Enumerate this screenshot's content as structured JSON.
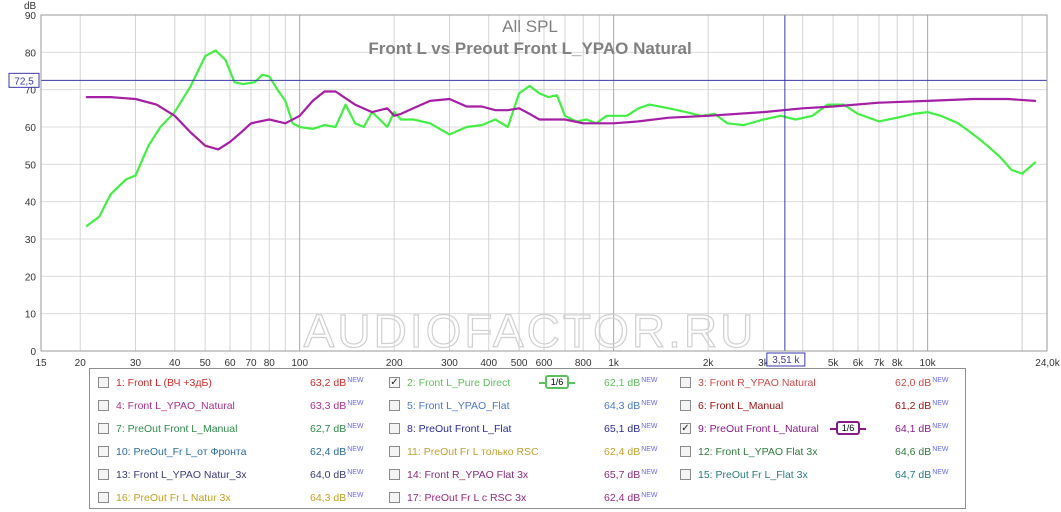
{
  "chart_data": {
    "type": "line",
    "title": "All SPL",
    "subtitle": "Front L vs Preout Front L_YPAO Natural",
    "ylabel": "dB",
    "xlabel": "Hz",
    "ylim": [
      0,
      90
    ],
    "xlim": [
      15,
      24000
    ],
    "x_scale": "log",
    "grid": true,
    "watermark": "AUDIOFACTOR.RU",
    "y_ticks": [
      "0",
      "10",
      "20",
      "30",
      "40",
      "50",
      "60",
      "70",
      "80",
      "90"
    ],
    "x_ticks": [
      {
        "v": 15,
        "label": "15"
      },
      {
        "v": 20,
        "label": "20"
      },
      {
        "v": 30,
        "label": "30"
      },
      {
        "v": 40,
        "label": "40"
      },
      {
        "v": 50,
        "label": "50"
      },
      {
        "v": 60,
        "label": "60"
      },
      {
        "v": 70,
        "label": "70"
      },
      {
        "v": 80,
        "label": "80"
      },
      {
        "v": 100,
        "label": "100"
      },
      {
        "v": 200,
        "label": "200"
      },
      {
        "v": 300,
        "label": "300"
      },
      {
        "v": 400,
        "label": "400"
      },
      {
        "v": 500,
        "label": "500"
      },
      {
        "v": 600,
        "label": "600"
      },
      {
        "v": 800,
        "label": "800"
      },
      {
        "v": 1000,
        "label": "1k"
      },
      {
        "v": 2000,
        "label": "2k"
      },
      {
        "v": 3000,
        "label": "3k"
      },
      {
        "v": 5000,
        "label": "5k"
      },
      {
        "v": 6000,
        "label": "6k"
      },
      {
        "v": 7000,
        "label": "7k"
      },
      {
        "v": 8000,
        "label": "8k"
      },
      {
        "v": 10000,
        "label": "10k"
      },
      {
        "v": 24000,
        "label": "24,0k Hz"
      }
    ],
    "cursor": {
      "y": 72.5,
      "y_label": "72,5",
      "x": 3510,
      "x_label": "3,51 k"
    },
    "series": [
      {
        "color": "#44ee44",
        "x": [
          21,
          23,
          25,
          28,
          30,
          33,
          36,
          40,
          45,
          50,
          54,
          58,
          62,
          66,
          72,
          76,
          80,
          85,
          90,
          95,
          100,
          110,
          120,
          130,
          140,
          150,
          160,
          170,
          180,
          190,
          200,
          210,
          230,
          260,
          300,
          340,
          380,
          420,
          460,
          500,
          540,
          580,
          620,
          660,
          700,
          760,
          820,
          880,
          950,
          1000,
          1100,
          1200,
          1300,
          1500,
          1700,
          1900,
          2100,
          2300,
          2600,
          3000,
          3400,
          3800,
          4300,
          4800,
          5400,
          6000,
          7000,
          8000,
          9000,
          10000,
          11000,
          12500,
          14000,
          15500,
          17000,
          18500,
          20000,
          22000
        ],
        "y": [
          33.5,
          36,
          42,
          46,
          47,
          55,
          60,
          64,
          71,
          79,
          80.5,
          78,
          72,
          71.5,
          72,
          74,
          73.5,
          70,
          67,
          61,
          60,
          59.5,
          60.5,
          60,
          66,
          61,
          60,
          64,
          62,
          60,
          64,
          62,
          62,
          61,
          58,
          60,
          60.5,
          62,
          60,
          69,
          71,
          69,
          68,
          68.5,
          63,
          61.5,
          62,
          61,
          63,
          63,
          63,
          65,
          66,
          65,
          64,
          63,
          63.5,
          61,
          60.5,
          62,
          63,
          62,
          63,
          66,
          66,
          63.5,
          61.5,
          62.5,
          63.5,
          64,
          63,
          61,
          58,
          55,
          52,
          48.5,
          47.5,
          50.5
        ]
      },
      {
        "color": "#a51ea5",
        "x": [
          21,
          25,
          30,
          35,
          40,
          45,
          50,
          55,
          60,
          65,
          70,
          80,
          90,
          100,
          110,
          120,
          130,
          150,
          170,
          190,
          200,
          210,
          230,
          260,
          300,
          340,
          380,
          420,
          460,
          500,
          540,
          580,
          620,
          700,
          800,
          900,
          1000,
          1200,
          1500,
          2000,
          3000,
          4000,
          5000,
          7000,
          10000,
          14000,
          18000,
          22000
        ],
        "y": [
          68,
          68,
          67.5,
          66,
          63,
          58.5,
          55,
          54,
          56,
          58.5,
          61,
          62,
          61,
          63,
          67,
          69.5,
          69.5,
          66,
          64,
          65,
          63,
          63.5,
          65,
          67,
          67.5,
          65.5,
          65.5,
          64.5,
          64.5,
          65,
          63.5,
          62,
          62,
          62,
          61,
          61,
          61,
          61.5,
          62.5,
          63,
          64,
          65,
          65.5,
          66.5,
          67,
          67.5,
          67.5,
          67
        ]
      }
    ]
  },
  "legend": [
    {
      "label": "1: Front L (ВЧ +3дБ)",
      "value": "63,2 dB",
      "sup": "NEW",
      "color": "#d32b2b",
      "checked": false
    },
    {
      "label": "2: Front L_Pure Direct",
      "value": "62,1 dB",
      "sup": "NEW",
      "color": "#5cc05c",
      "checked": true,
      "badge": "1/6"
    },
    {
      "label": "3: Front R_YPAO Natural",
      "value": "62,0 dB",
      "sup": "NEW",
      "color": "#d04a4a",
      "checked": false
    },
    {
      "label": "4: Front L_YPAO_Natural",
      "value": "63,3 dB",
      "sup": "NEW",
      "color": "#b0308a",
      "checked": false
    },
    {
      "label": "5: Front L_YPAO_Flat",
      "value": "64,3 dB",
      "sup": "NEW",
      "color": "#4a78c8",
      "checked": false
    },
    {
      "label": "6: Front L_Manual",
      "value": "61,2 dB",
      "sup": "NEW",
      "color": "#9a1010",
      "checked": false
    },
    {
      "label": "7: PreOut Front L_Manual",
      "value": "62,7 dB",
      "sup": "NEW",
      "color": "#2e8a4a",
      "checked": false
    },
    {
      "label": "8: PreOut Front L_Flat",
      "value": "65,1 dB",
      "sup": "NEW",
      "color": "#2a2a9a",
      "checked": false
    },
    {
      "label": "9: PreOut Front L_Natural",
      "value": "64,1 dB",
      "sup": "NEW",
      "color": "#8a1a8a",
      "checked": true,
      "badge": "1/6"
    },
    {
      "label": "10: PreOut_Fr L_от Фронта",
      "value": "62,4 dB",
      "sup": "NEW",
      "color": "#2a6a9a",
      "checked": false
    },
    {
      "label": "11: PreOut Fr L только RSC",
      "value": "62,4 dB",
      "sup": "NEW",
      "color": "#c0a030",
      "checked": false
    },
    {
      "label": "12: Front L_YPAO Flat 3x",
      "value": "64,6 dB",
      "sup": "NEW",
      "color": "#2e7a3a",
      "checked": false
    },
    {
      "label": "13: Front L_YPAO Natur_3x",
      "value": "64,0 dB",
      "sup": "NEW",
      "color": "#3a3a7a",
      "checked": false
    },
    {
      "label": "14: Front R_YPAO Flat 3x",
      "value": "65,7 dB",
      "sup": "NEW",
      "color": "#8a2a7a",
      "checked": false
    },
    {
      "label": "15: PreOut Fr L_Flat 3x",
      "value": "64,7 dB",
      "sup": "NEW",
      "color": "#2a7a7a",
      "checked": false
    },
    {
      "label": "16: PreOut Fr L Natur 3x",
      "value": "64,3 dB",
      "sup": "NEW",
      "color": "#c0a020",
      "checked": false
    },
    {
      "label": "17: PreOut Fr L с RSC 3x",
      "value": "62,4 dB",
      "sup": "NEW",
      "color": "#9a2a7a",
      "checked": false
    }
  ]
}
